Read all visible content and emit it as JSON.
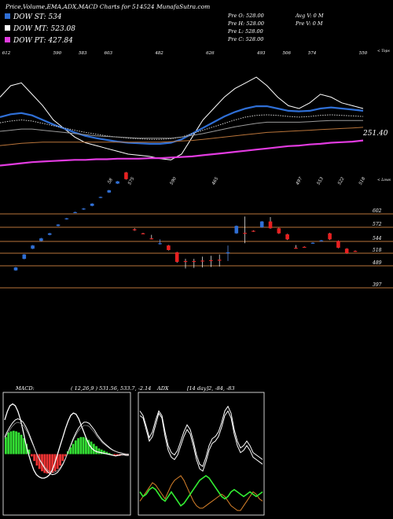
{
  "header": {
    "title": "Price,Volume,EMA,ADX,MACD Charts for 514524  MunafaSutra.com"
  },
  "legend": [
    {
      "label": "DOW ST: 534",
      "color": "#2f6fd6"
    },
    {
      "label": "DOW MT: 523.08",
      "color": "#ffffff"
    },
    {
      "label": "DOW PT: 427.84",
      "color": "#e23be0"
    }
  ],
  "info": {
    "open": "Pre   O: 528.00",
    "high": "Pre   H: 528.00",
    "low": "Pre   L: 528.00",
    "close": "Pre   C: 528.00",
    "avgv": "Avg V: 0   M",
    "prev": "Pre   V: 0   M"
  },
  "chart_data": [
    {
      "type": "line",
      "name": "ema-panel",
      "top_ticks": [
        "612",
        "",
        "590",
        "583",
        "603",
        "",
        "482",
        "",
        "626",
        "",
        "493",
        "506",
        "574",
        "",
        "550"
      ],
      "bottom_ticks": [
        "",
        "",
        "",
        "",
        "",
        "58",
        "575",
        "",
        "590",
        "",
        "465",
        "",
        "",
        "",
        "497",
        "553",
        "522",
        "518"
      ],
      "right_top_label": "< Tops",
      "right_bottom_label": "< Lows",
      "last_value_label": "251.40",
      "series": [
        {
          "color": "#ffffff",
          "values": [
            540,
            560,
            565,
            545,
            525,
            500,
            485,
            470,
            460,
            455,
            450,
            445,
            440,
            438,
            436,
            432,
            430,
            440,
            470,
            500,
            520,
            540,
            555,
            565,
            575,
            560,
            540,
            525,
            520,
            530,
            545,
            540,
            530,
            525,
            520
          ]
        },
        {
          "color": "#2f6fd6",
          "values": [
            505,
            510,
            512,
            508,
            500,
            492,
            485,
            478,
            472,
            468,
            465,
            462,
            460,
            459,
            458,
            458,
            460,
            466,
            476,
            486,
            496,
            506,
            514,
            520,
            524,
            524,
            520,
            516,
            515,
            516,
            520,
            522,
            520,
            518,
            516
          ]
        },
        {
          "color": "#d0d0d0",
          "values": [
            495,
            498,
            500,
            498,
            494,
            490,
            486,
            482,
            478,
            475,
            472,
            470,
            468,
            467,
            466,
            466,
            467,
            470,
            476,
            482,
            488,
            494,
            500,
            505,
            508,
            509,
            508,
            506,
            505,
            506,
            508,
            509,
            508,
            507,
            506
          ]
        },
        {
          "color": "#9a9a9a",
          "values": [
            480,
            482,
            484,
            484,
            482,
            480,
            478,
            476,
            474,
            472,
            471,
            470,
            469,
            468,
            468,
            468,
            468,
            470,
            473,
            476,
            480,
            484,
            488,
            491,
            494,
            496,
            496,
            496,
            496,
            497,
            498,
            499,
            499,
            499,
            499
          ]
        },
        {
          "color": "#b8743a",
          "values": [
            455,
            457,
            459,
            460,
            461,
            461,
            461,
            461,
            461,
            461,
            461,
            461,
            461,
            461,
            461,
            461,
            462,
            463,
            464,
            466,
            468,
            470,
            472,
            474,
            476,
            478,
            479,
            480,
            481,
            482,
            483,
            484,
            485,
            486,
            487
          ]
        },
        {
          "color": "#e23be0",
          "values": [
            420,
            422,
            424,
            426,
            427,
            428,
            429,
            430,
            430,
            431,
            431,
            432,
            432,
            432,
            433,
            433,
            434,
            435,
            436,
            438,
            440,
            442,
            444,
            446,
            448,
            450,
            452,
            454,
            455,
            457,
            458,
            460,
            461,
            462,
            464
          ]
        }
      ]
    },
    {
      "type": "candlestick",
      "name": "price-panel",
      "levels": [
        {
          "value": 602,
          "label": "602"
        },
        {
          "value": 572,
          "label": "572"
        },
        {
          "value": 544,
          "label": "544"
        },
        {
          "value": 518,
          "label": "518"
        },
        {
          "value": 489,
          "label": "489"
        },
        {
          "value": 397,
          "label": "397"
        }
      ],
      "candles": [
        {
          "o": 470,
          "c": 482,
          "h": 484,
          "l": 468,
          "up": true
        },
        {
          "o": 505,
          "c": 515,
          "h": 516,
          "l": 504,
          "up": true
        },
        {
          "o": 528,
          "c": 535,
          "h": 536,
          "l": 527,
          "up": true
        },
        {
          "o": 545,
          "c": 550,
          "h": 551,
          "l": 544,
          "up": true
        },
        {
          "o": 557,
          "c": 560,
          "h": 561,
          "l": 556,
          "up": true
        },
        {
          "o": 575,
          "c": 578,
          "h": 579,
          "l": 574,
          "up": true
        },
        {
          "o": 590,
          "c": 592,
          "h": 593,
          "l": 589,
          "up": true
        },
        {
          "o": 605,
          "c": 606,
          "h": 607,
          "l": 604,
          "up": true
        },
        {
          "o": 612,
          "c": 614,
          "h": 615,
          "l": 611,
          "up": true
        },
        {
          "o": 620,
          "c": 625,
          "h": 626,
          "l": 619,
          "up": true
        },
        {
          "o": 638,
          "c": 640,
          "h": 641,
          "l": 637,
          "up": true
        },
        {
          "o": 650,
          "c": 655,
          "h": 656,
          "l": 649,
          "up": true
        },
        {
          "o": 670,
          "c": 675,
          "h": 676,
          "l": 669,
          "up": true
        },
        {
          "o": 695,
          "c": 680,
          "h": 696,
          "l": 679,
          "up": false
        },
        {
          "o": 568,
          "c": 566,
          "h": 570,
          "l": 565,
          "up": false
        },
        {
          "o": 560,
          "c": 559,
          "h": 561,
          "l": 558,
          "up": false
        },
        {
          "o": 550,
          "c": 549,
          "h": 557,
          "l": 548,
          "up": false
        },
        {
          "o": 540,
          "c": 538,
          "h": 548,
          "l": 537,
          "up": true
        },
        {
          "o": 535,
          "c": 525,
          "h": 536,
          "l": 524,
          "up": false
        },
        {
          "o": 520,
          "c": 498,
          "h": 521,
          "l": 496,
          "up": false
        },
        {
          "o": 500,
          "c": 499,
          "h": 505,
          "l": 478,
          "up": false
        },
        {
          "o": 500,
          "c": 499,
          "h": 505,
          "l": 480,
          "up": false
        },
        {
          "o": 501,
          "c": 500,
          "h": 510,
          "l": 482,
          "up": false
        },
        {
          "o": 502,
          "c": 501,
          "h": 512,
          "l": 484,
          "up": false
        },
        {
          "o": 503,
          "c": 502,
          "h": 515,
          "l": 486,
          "up": false
        },
        {
          "o": 518,
          "c": 520,
          "h": 535,
          "l": 500,
          "up": true
        },
        {
          "o": 560,
          "c": 575,
          "h": 576,
          "l": 559,
          "up": true
        },
        {
          "o": 561,
          "c": 560,
          "h": 596,
          "l": 540,
          "up": false
        },
        {
          "o": 565,
          "c": 564,
          "h": 566,
          "l": 563,
          "up": false
        },
        {
          "o": 572,
          "c": 585,
          "h": 586,
          "l": 571,
          "up": true
        },
        {
          "o": 585,
          "c": 570,
          "h": 595,
          "l": 569,
          "up": false
        },
        {
          "o": 570,
          "c": 560,
          "h": 571,
          "l": 559,
          "up": false
        },
        {
          "o": 558,
          "c": 548,
          "h": 559,
          "l": 547,
          "up": false
        },
        {
          "o": 530,
          "c": 529,
          "h": 536,
          "l": 528,
          "up": false
        },
        {
          "o": 532,
          "c": 531,
          "h": 533,
          "l": 530,
          "up": false
        },
        {
          "o": 540,
          "c": 541,
          "h": 542,
          "l": 539,
          "up": true
        },
        {
          "o": 545,
          "c": 546,
          "h": 547,
          "l": 544,
          "up": true
        },
        {
          "o": 560,
          "c": 548,
          "h": 561,
          "l": 547,
          "up": false
        },
        {
          "o": 545,
          "c": 530,
          "h": 546,
          "l": 529,
          "up": false
        },
        {
          "o": 528,
          "c": 518,
          "h": 529,
          "l": 517,
          "up": false
        },
        {
          "o": 523,
          "c": 522,
          "h": 524,
          "l": 521,
          "up": false
        }
      ]
    },
    {
      "type": "line",
      "name": "macd-panel",
      "label": "MACD:",
      "params": "( 12,26,9 ) 531.56,  533.7,  -2.14",
      "histogram": [
        30,
        38,
        40,
        41,
        40,
        38,
        34,
        28,
        18,
        8,
        -4,
        -12,
        -20,
        -26,
        -30,
        -33,
        -34,
        -34,
        -33,
        -30,
        -26,
        -20,
        -12,
        -4,
        5,
        12,
        18,
        24,
        28,
        30,
        30,
        28,
        25,
        22,
        18,
        14,
        10,
        8,
        6,
        4,
        2,
        0,
        -2,
        -3,
        -3,
        -2,
        -1,
        -1
      ],
      "macd": [
        60,
        75,
        85,
        88,
        85,
        75,
        60,
        40,
        18,
        0,
        -15,
        -28,
        -36,
        -40,
        -42,
        -42,
        -40,
        -36,
        -28,
        -15,
        0,
        15,
        30,
        45,
        58,
        68,
        72,
        70,
        62,
        50,
        38,
        26,
        16,
        10,
        6,
        4,
        3,
        2,
        1,
        0,
        -1,
        -2,
        -3,
        -2,
        -1,
        -1,
        -2,
        -2
      ],
      "signal": [
        30,
        40,
        48,
        55,
        60,
        62,
        60,
        56,
        48,
        38,
        26,
        14,
        2,
        -8,
        -16,
        -24,
        -30,
        -34,
        -36,
        -35,
        -32,
        -26,
        -18,
        -8,
        4,
        16,
        28,
        38,
        46,
        52,
        56,
        56,
        54,
        48,
        42,
        34,
        28,
        22,
        18,
        14,
        10,
        7,
        5,
        3,
        2,
        1,
        0,
        0
      ]
    },
    {
      "type": "line",
      "name": "adx-panel",
      "label": "ADX",
      "params": "[14 day]2, -84, -83",
      "white_a": [
        88,
        84,
        75,
        65,
        70,
        80,
        88,
        84,
        70,
        58,
        52,
        50,
        54,
        62,
        70,
        76,
        72,
        62,
        50,
        42,
        40,
        48,
        58,
        64,
        66,
        70,
        78,
        88,
        92,
        86,
        72,
        62,
        56,
        58,
        62,
        58,
        52,
        50,
        48,
        46
      ],
      "white_b": [
        84,
        82,
        72,
        62,
        66,
        76,
        86,
        82,
        66,
        54,
        48,
        46,
        50,
        58,
        66,
        72,
        68,
        58,
        46,
        38,
        36,
        44,
        54,
        60,
        62,
        66,
        74,
        84,
        88,
        82,
        68,
        58,
        52,
        54,
        58,
        54,
        48,
        46,
        44,
        42
      ],
      "green": [
        18,
        14,
        16,
        20,
        22,
        20,
        16,
        12,
        10,
        14,
        18,
        14,
        10,
        6,
        8,
        12,
        16,
        20,
        24,
        28,
        30,
        32,
        30,
        26,
        22,
        18,
        14,
        12,
        14,
        18,
        20,
        18,
        16,
        14,
        16,
        18,
        16,
        14,
        16,
        18
      ],
      "orange": [
        10,
        14,
        18,
        22,
        26,
        24,
        20,
        16,
        12,
        18,
        24,
        28,
        30,
        32,
        28,
        22,
        16,
        10,
        6,
        4,
        4,
        6,
        8,
        10,
        12,
        14,
        16,
        14,
        10,
        6,
        4,
        2,
        2,
        6,
        10,
        14,
        18,
        16,
        12,
        10
      ]
    }
  ]
}
